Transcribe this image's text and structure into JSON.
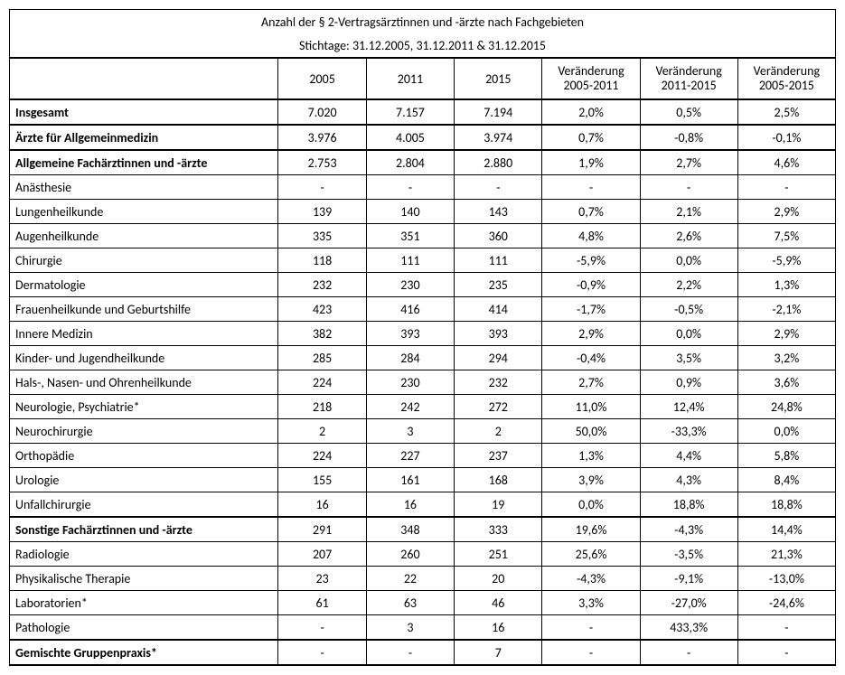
{
  "title": "Anzahl der § 2-Vertragsärztinnen und -ärzte nach Fachgebieten",
  "subtitle": "Stichtage: 31.12.2005, 31.12.2011 & 31.12.2015",
  "headers": {
    "y2005": "2005",
    "y2011": "2011",
    "y2015": "2015",
    "c0511": "Veränderung 2005-2011",
    "c1115": "Veränderung 2011-2015",
    "c0515": "Veränderung 2005-2015"
  },
  "rows": [
    {
      "label": "Insgesamt",
      "bold": true,
      "bb": true,
      "v": [
        "7.020",
        "7.157",
        "7.194",
        "2,0%",
        "0,5%",
        "2,5%"
      ]
    },
    {
      "label": "Ärzte für Allgemeinmedizin",
      "bold": true,
      "bb": true,
      "v": [
        "3.976",
        "4.005",
        "3.974",
        "0,7%",
        "-0,8%",
        "-0,1%"
      ]
    },
    {
      "label": "Allgemeine Fachärztinnen und -ärzte",
      "bold": true,
      "bb": false,
      "v": [
        "2.753",
        "2.804",
        "2.880",
        "1,9%",
        "2,7%",
        "4,6%"
      ]
    },
    {
      "label": "Anästhesie",
      "bold": false,
      "bb": false,
      "v": [
        "-",
        "-",
        "-",
        "-",
        "-",
        "-"
      ]
    },
    {
      "label": "Lungenheilkunde",
      "bold": false,
      "bb": false,
      "v": [
        "139",
        "140",
        "143",
        "0,7%",
        "2,1%",
        "2,9%"
      ]
    },
    {
      "label": "Augenheilkunde",
      "bold": false,
      "bb": false,
      "v": [
        "335",
        "351",
        "360",
        "4,8%",
        "2,6%",
        "7,5%"
      ]
    },
    {
      "label": "Chirurgie",
      "bold": false,
      "bb": false,
      "v": [
        "118",
        "111",
        "111",
        "-5,9%",
        "0,0%",
        "-5,9%"
      ]
    },
    {
      "label": "Dermatologie",
      "bold": false,
      "bb": false,
      "v": [
        "232",
        "230",
        "235",
        "-0,9%",
        "2,2%",
        "1,3%"
      ]
    },
    {
      "label": "Frauenheilkunde und Geburtshilfe",
      "bold": false,
      "bb": false,
      "v": [
        "423",
        "416",
        "414",
        "-1,7%",
        "-0,5%",
        "-2,1%"
      ]
    },
    {
      "label": "Innere Medizin",
      "bold": false,
      "bb": false,
      "v": [
        "382",
        "393",
        "393",
        "2,9%",
        "0,0%",
        "2,9%"
      ]
    },
    {
      "label": "Kinder- und Jugendheilkunde",
      "bold": false,
      "bb": false,
      "v": [
        "285",
        "284",
        "294",
        "-0,4%",
        "3,5%",
        "3,2%"
      ]
    },
    {
      "label": "Hals-, Nasen- und Ohrenheilkunde",
      "bold": false,
      "bb": false,
      "v": [
        "224",
        "230",
        "232",
        "2,7%",
        "0,9%",
        "3,6%"
      ]
    },
    {
      "label": "Neurologie, Psychiatrie*",
      "bold": false,
      "bb": false,
      "v": [
        "218",
        "242",
        "272",
        "11,0%",
        "12,4%",
        "24,8%"
      ]
    },
    {
      "label": "Neurochirurgie",
      "bold": false,
      "bb": false,
      "v": [
        "2",
        "3",
        "2",
        "50,0%",
        "-33,3%",
        "0,0%"
      ]
    },
    {
      "label": "Orthopädie",
      "bold": false,
      "bb": false,
      "v": [
        "224",
        "227",
        "237",
        "1,3%",
        "4,4%",
        "5,8%"
      ]
    },
    {
      "label": "Urologie",
      "bold": false,
      "bb": false,
      "v": [
        "155",
        "161",
        "168",
        "3,9%",
        "4,3%",
        "8,4%"
      ]
    },
    {
      "label": "Unfallchirurgie",
      "bold": false,
      "bb": true,
      "v": [
        "16",
        "16",
        "19",
        "0,0%",
        "18,8%",
        "18,8%"
      ]
    },
    {
      "label": "Sonstige Fachärztinnen und -ärzte",
      "bold": true,
      "bb": false,
      "v": [
        "291",
        "348",
        "333",
        "19,6%",
        "-4,3%",
        "14,4%"
      ]
    },
    {
      "label": "Radiologie",
      "bold": false,
      "bb": false,
      "v": [
        "207",
        "260",
        "251",
        "25,6%",
        "-3,5%",
        "21,3%"
      ]
    },
    {
      "label": "Physikalische Therapie",
      "bold": false,
      "bb": false,
      "v": [
        "23",
        "22",
        "20",
        "-4,3%",
        "-9,1%",
        "-13,0%"
      ]
    },
    {
      "label": "Laboratorien*",
      "bold": false,
      "bb": false,
      "v": [
        "61",
        "63",
        "46",
        "3,3%",
        "-27,0%",
        "-24,6%"
      ]
    },
    {
      "label": "Pathologie",
      "bold": false,
      "bb": true,
      "v": [
        "-",
        "3",
        "16",
        "-",
        "433,3%",
        "-"
      ]
    },
    {
      "label": "Gemischte Gruppenpraxis*",
      "bold": true,
      "bb": true,
      "v": [
        "-",
        "-",
        "7",
        "-",
        "-",
        "-"
      ]
    }
  ]
}
